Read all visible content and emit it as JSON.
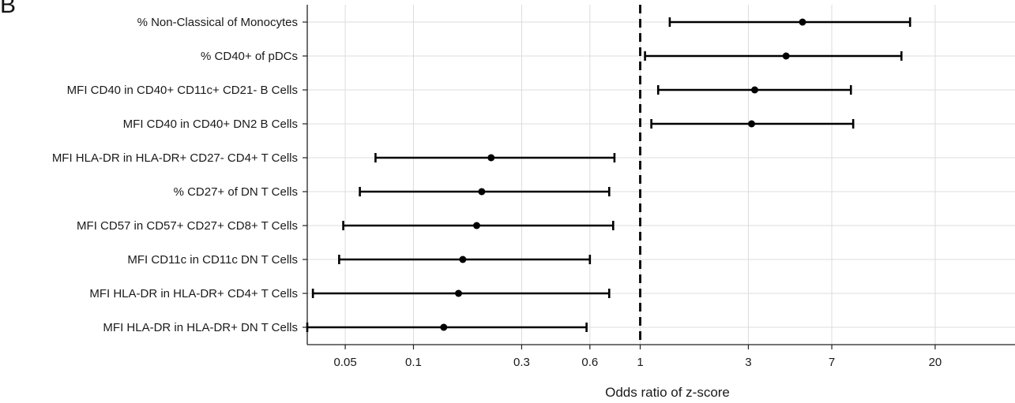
{
  "panel_label": "B",
  "chart_data": {
    "type": "forest",
    "xlabel": "Odds ratio of z-score",
    "x_scale": "log",
    "xlim": [
      0.034,
      45
    ],
    "xticks": [
      0.05,
      0.1,
      0.3,
      0.6,
      1,
      3,
      7,
      20
    ],
    "xtick_labels": [
      "0.05",
      "0.1",
      "0.3",
      "0.6",
      "1",
      "3",
      "7",
      "20"
    ],
    "reference_line": 1,
    "grid": true,
    "rows": [
      {
        "label": "% Non-Classical of Monocytes",
        "estimate": 5.2,
        "lower": 1.35,
        "upper": 15.5
      },
      {
        "label": "% CD40+ of pDCs",
        "estimate": 4.4,
        "lower": 1.05,
        "upper": 14.2
      },
      {
        "label": "MFI CD40 in CD40+ CD11c+ CD21- B Cells",
        "estimate": 3.2,
        "lower": 1.2,
        "upper": 8.5
      },
      {
        "label": "MFI CD40 in CD40+ DN2 B Cells",
        "estimate": 3.1,
        "lower": 1.12,
        "upper": 8.7
      },
      {
        "label": "MFI HLA-DR in HLA-DR+ CD27- CD4+ T Cells",
        "estimate": 0.22,
        "lower": 0.068,
        "upper": 0.77
      },
      {
        "label": "% CD27+ of DN T Cells",
        "estimate": 0.2,
        "lower": 0.058,
        "upper": 0.73
      },
      {
        "label": "MFI CD57 in CD57+ CD27+ CD8+ T Cells",
        "estimate": 0.19,
        "lower": 0.049,
        "upper": 0.76
      },
      {
        "label": "MFI CD11c in CD11c DN T Cells",
        "estimate": 0.165,
        "lower": 0.047,
        "upper": 0.6
      },
      {
        "label": "MFI HLA-DR in HLA-DR+ CD4+ T Cells",
        "estimate": 0.158,
        "lower": 0.036,
        "upper": 0.73
      },
      {
        "label": "MFI HLA-DR in HLA-DR+ DN T Cells",
        "estimate": 0.136,
        "lower": 0.034,
        "upper": 0.58
      }
    ]
  }
}
